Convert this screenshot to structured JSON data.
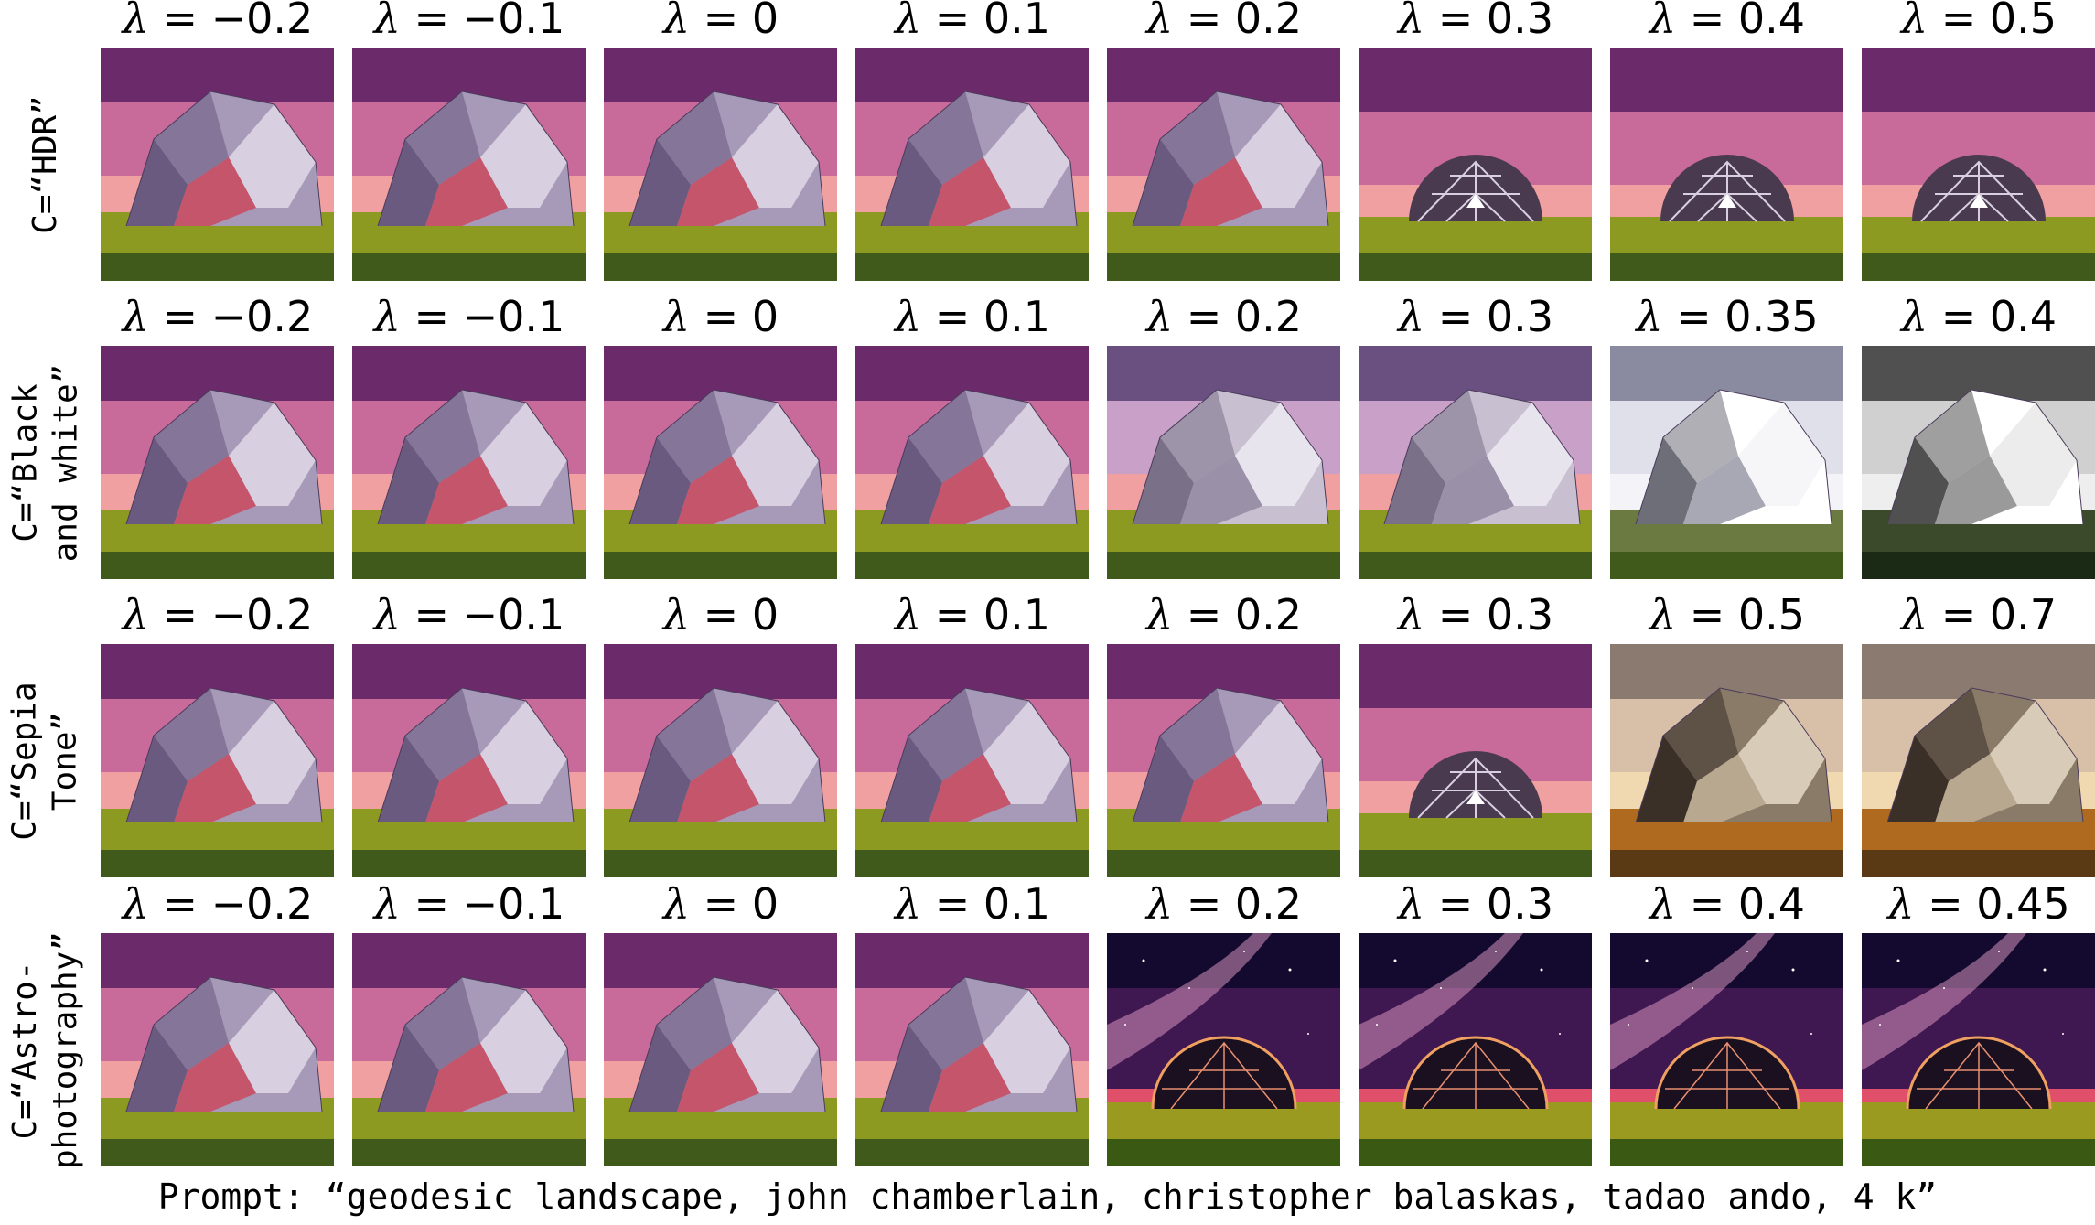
{
  "rows": [
    {
      "label_line1": "C=“HDR”",
      "label_line2": "",
      "lambdas": [
        "−0.2",
        "−0.1",
        "0",
        "0.1",
        "0.2",
        "0.3",
        "0.4",
        "0.5"
      ],
      "styles": [
        "plain",
        "plain",
        "plain",
        "plain",
        "plain",
        "lattice",
        "lattice",
        "lattice"
      ]
    },
    {
      "label_line1": "C=“Black",
      "label_line2": "and white”",
      "lambdas": [
        "−0.2",
        "−0.1",
        "0",
        "0.1",
        "0.2",
        "0.3",
        "0.35",
        "0.4"
      ],
      "styles": [
        "plain",
        "plain",
        "plain",
        "plain",
        "grey",
        "grey",
        "white",
        "bw"
      ]
    },
    {
      "label_line1": "C=“Sepia",
      "label_line2": "Tone”",
      "lambdas": [
        "−0.2",
        "−0.1",
        "0",
        "0.1",
        "0.2",
        "0.3",
        "0.5",
        "0.7"
      ],
      "styles": [
        "plain",
        "plain",
        "plain",
        "plain",
        "plain",
        "lattice",
        "sepia",
        "sepia"
      ]
    },
    {
      "label_line1": "C=“Astro-",
      "label_line2": "photography”",
      "lambdas": [
        "−0.2",
        "−0.1",
        "0",
        "0.1",
        "0.2",
        "0.3",
        "0.4",
        "0.45"
      ],
      "styles": [
        "plain",
        "plain",
        "plain",
        "plain",
        "astro",
        "astro",
        "astro",
        "astro"
      ]
    }
  ],
  "lambda_symbol": "λ",
  "prompt": "Prompt: “geodesic landscape, john chamberlain, christopher balaskas, tadao ando, 4 k”",
  "colors": {
    "sky_top": "#7a2a6e",
    "sky_bottom": "#e39aa8",
    "grass": "#8a9a2a",
    "dome": "#9a8aa8"
  }
}
